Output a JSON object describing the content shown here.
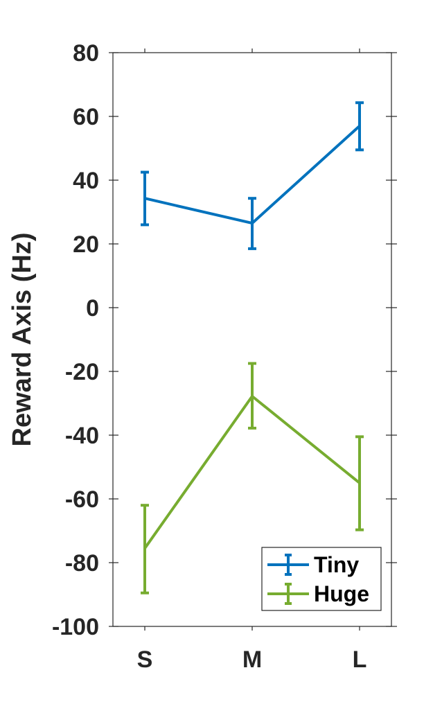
{
  "chart_data": {
    "type": "line",
    "title": "",
    "xlabel": "",
    "ylabel": "Reward Axis (Hz)",
    "categories": [
      "S",
      "M",
      "L"
    ],
    "ylim": [
      -100,
      80
    ],
    "yticks": [
      80,
      60,
      40,
      20,
      0,
      -20,
      -40,
      -60,
      -80,
      -100
    ],
    "ytick_labels": [
      "80",
      "60",
      "40",
      "20",
      "0",
      "-20",
      "-40",
      "-60",
      "-80",
      "-100"
    ],
    "grid": false,
    "legend_position": "bottom-right",
    "series": [
      {
        "name": "Tiny",
        "color": "#0072BD",
        "values": [
          34.3,
          26.5,
          57
        ],
        "err_low": [
          26,
          18.5,
          49.5
        ],
        "err_high": [
          42.5,
          34.3,
          64.3
        ]
      },
      {
        "name": "Huge",
        "color": "#77AC30",
        "values": [
          -75.5,
          -27.8,
          -55
        ],
        "err_low": [
          -89.5,
          -37.8,
          -69.7
        ],
        "err_high": [
          -62,
          -17.5,
          -40.5
        ]
      }
    ]
  }
}
